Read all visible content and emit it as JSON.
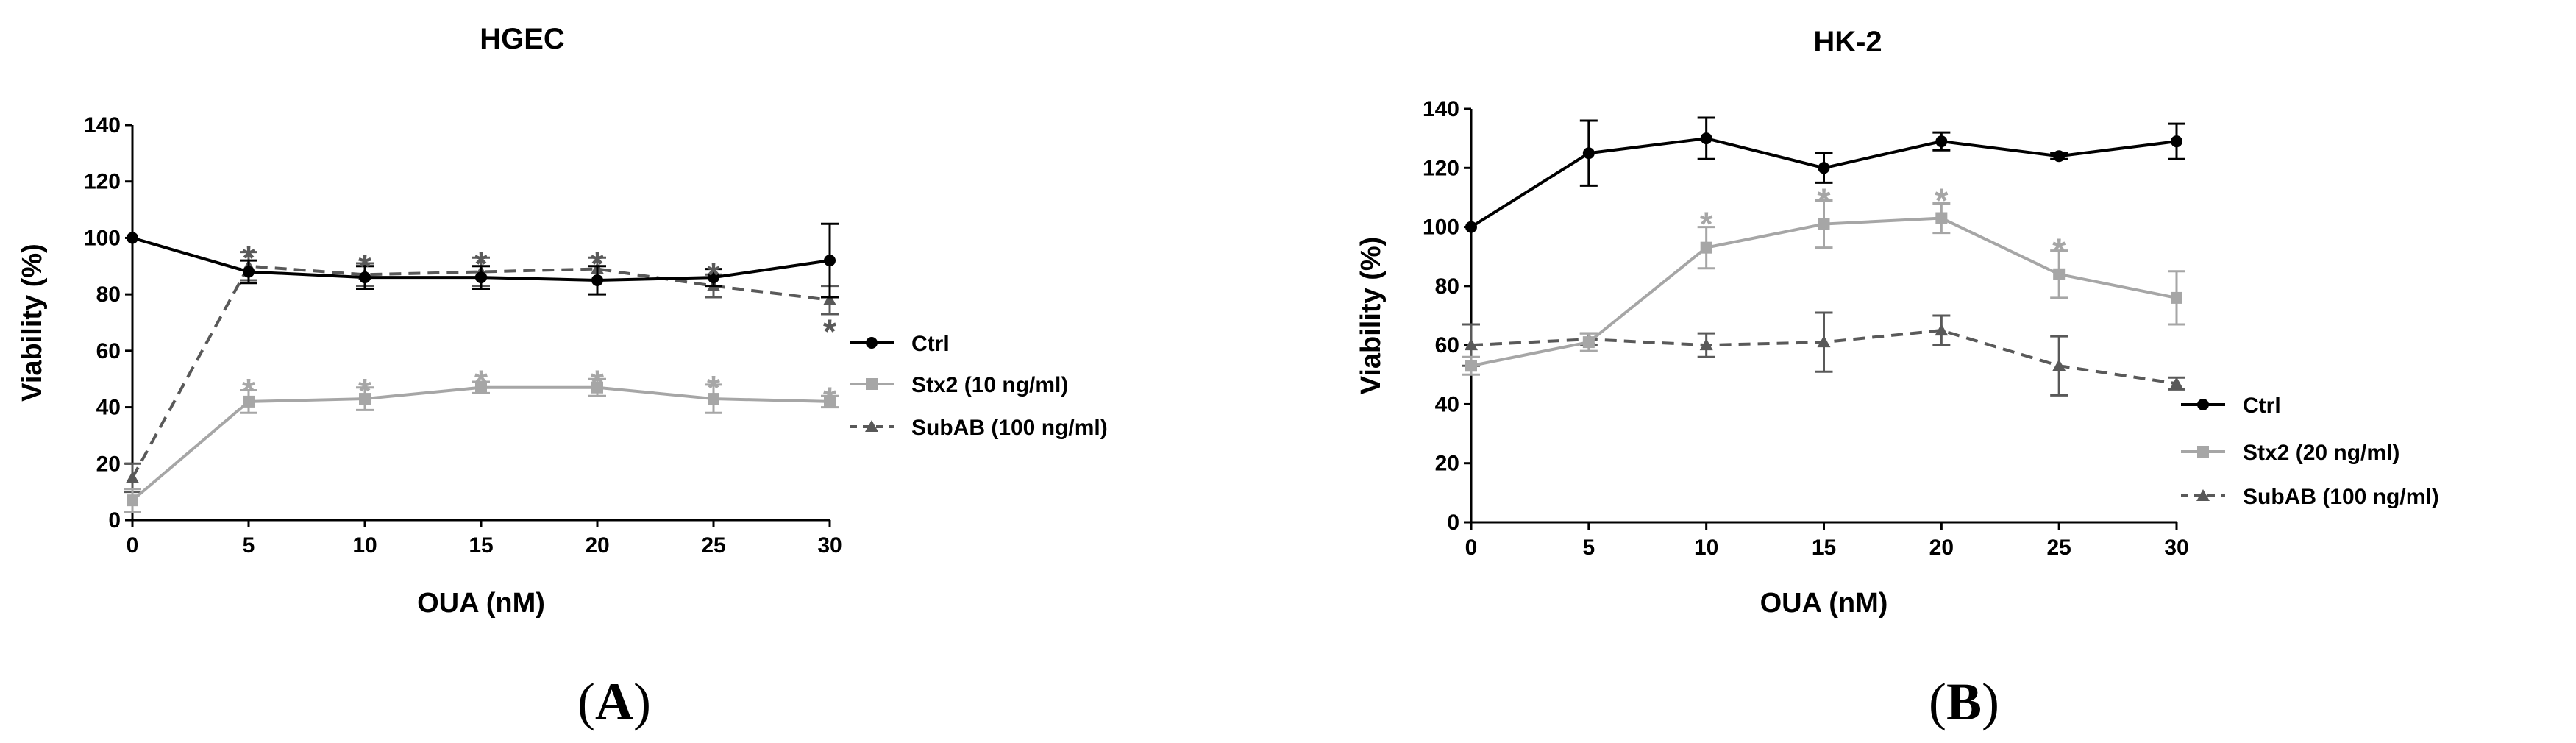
{
  "colors": {
    "ctrl": "#000000",
    "stx2": "#a6a6a6",
    "subab": "#595959"
  },
  "chart_data": [
    {
      "type": "line",
      "panel": "A",
      "title": "HGEC",
      "xlabel": "OUA (nM)",
      "ylabel": "Viability (%)",
      "x": [
        0,
        5,
        10,
        15,
        20,
        25,
        30
      ],
      "xticks": [
        "0",
        "5",
        "10",
        "15",
        "20",
        "25",
        "30"
      ],
      "yticks": [
        "0",
        "20",
        "40",
        "60",
        "80",
        "100",
        "120",
        "140"
      ],
      "xlim": [
        0,
        30
      ],
      "ylim": [
        0,
        140
      ],
      "legend_position": "right",
      "series": [
        {
          "key": "ctrl",
          "name": "Ctrl",
          "values": [
            100,
            88,
            86,
            86,
            85,
            86,
            92
          ],
          "errors": [
            0,
            4,
            4,
            4,
            5,
            3,
            13
          ],
          "marker": "circle",
          "dash": "solid"
        },
        {
          "key": "stx2",
          "name": "Stx2 (10 ng/ml)",
          "values": [
            7,
            42,
            43,
            47,
            47,
            43,
            42
          ],
          "errors": [
            4,
            4,
            4,
            2,
            3,
            5,
            2
          ],
          "marker": "square",
          "dash": "solid"
        },
        {
          "key": "subab",
          "name": "SubAB (100 ng/ml)",
          "values": [
            15,
            90,
            87,
            88,
            89,
            83,
            78
          ],
          "errors": [
            5,
            5,
            4,
            5,
            4,
            4,
            5
          ],
          "marker": "triangle",
          "dash": "dashed"
        }
      ],
      "annotations": [
        {
          "x": 5,
          "y": 95,
          "text": "*",
          "series": "subab"
        },
        {
          "x": 10,
          "y": 92,
          "text": "*",
          "series": "subab"
        },
        {
          "x": 15,
          "y": 93,
          "text": "*",
          "series": "subab"
        },
        {
          "x": 20,
          "y": 93,
          "text": "*",
          "series": "subab"
        },
        {
          "x": 25,
          "y": 89,
          "text": "*",
          "series": "subab"
        },
        {
          "x": 30,
          "y": 69,
          "text": "*",
          "series": "subab"
        },
        {
          "x": 5,
          "y": 48,
          "text": "*",
          "series": "stx2"
        },
        {
          "x": 10,
          "y": 48,
          "text": "*",
          "series": "stx2"
        },
        {
          "x": 15,
          "y": 51,
          "text": "*",
          "series": "stx2"
        },
        {
          "x": 20,
          "y": 51,
          "text": "*",
          "series": "stx2"
        },
        {
          "x": 25,
          "y": 49,
          "text": "*",
          "series": "stx2"
        },
        {
          "x": 30,
          "y": 45,
          "text": "*",
          "series": "stx2"
        }
      ]
    },
    {
      "type": "line",
      "panel": "B",
      "title": "HK-2",
      "xlabel": "OUA (nM)",
      "ylabel": "Viability (%)",
      "x": [
        0,
        5,
        10,
        15,
        20,
        25,
        30
      ],
      "xticks": [
        "0",
        "5",
        "10",
        "15",
        "20",
        "25",
        "30"
      ],
      "yticks": [
        "0",
        "20",
        "40",
        "60",
        "80",
        "100",
        "120",
        "140"
      ],
      "xlim": [
        0,
        30
      ],
      "ylim": [
        0,
        140
      ],
      "legend_position": "right",
      "series": [
        {
          "key": "ctrl",
          "name": "Ctrl",
          "values": [
            100,
            125,
            130,
            120,
            129,
            124,
            129
          ],
          "errors": [
            0,
            11,
            7,
            5,
            3,
            1,
            6
          ],
          "marker": "circle",
          "dash": "solid"
        },
        {
          "key": "stx2",
          "name": "Stx2 (20 ng/ml)",
          "values": [
            53,
            61,
            93,
            101,
            103,
            84,
            76
          ],
          "errors": [
            3,
            3,
            7,
            8,
            5,
            8,
            9
          ],
          "marker": "square",
          "dash": "solid"
        },
        {
          "key": "subab",
          "name": "SubAB (100 ng/ml)",
          "values": [
            60,
            62,
            60,
            61,
            65,
            53,
            47
          ],
          "errors": [
            7,
            2,
            4,
            10,
            5,
            10,
            2
          ],
          "marker": "triangle",
          "dash": "dashed"
        }
      ],
      "annotations": [
        {
          "x": 10,
          "y": 103,
          "text": "*",
          "series": "stx2"
        },
        {
          "x": 15,
          "y": 111,
          "text": "*",
          "series": "stx2"
        },
        {
          "x": 20,
          "y": 111,
          "text": "*",
          "series": "stx2"
        },
        {
          "x": 25,
          "y": 94,
          "text": "*",
          "series": "stx2"
        }
      ]
    }
  ],
  "panel_labels": {
    "a": "A",
    "b": "B"
  }
}
